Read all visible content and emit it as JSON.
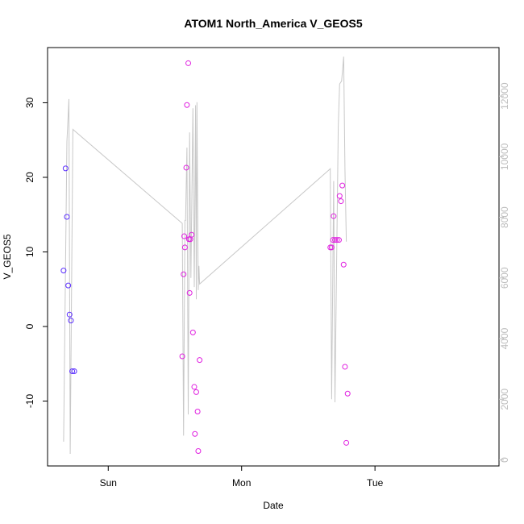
{
  "chart_data": {
    "type": "scatter",
    "title": "ATOM1 North_America V_GEOS5",
    "xlabel": "Date",
    "ylabel": "V_GEOS5",
    "x_ticks": [
      {
        "label": "Sun",
        "x": 0.0
      },
      {
        "label": "Mon",
        "x": 1.0
      },
      {
        "label": "Tue",
        "x": 2.0
      }
    ],
    "xlim": [
      -0.455,
      2.93
    ],
    "ylim": [
      -18.7,
      37.4
    ],
    "y_ticks": [
      -10,
      0,
      10,
      20,
      30
    ],
    "y2lim": [
      -200,
      13600
    ],
    "y2_ticks": [
      0,
      2000,
      4000,
      6000,
      8000,
      10000,
      12000
    ],
    "series": [
      {
        "kind": "points",
        "color": "#5a2dff",
        "points": [
          {
            "x": -0.335,
            "y": 7.5
          },
          {
            "x": -0.32,
            "y": 21.2
          },
          {
            "x": -0.31,
            "y": 14.7
          },
          {
            "x": -0.3,
            "y": 5.5
          },
          {
            "x": -0.29,
            "y": 1.6
          },
          {
            "x": -0.28,
            "y": 0.8
          },
          {
            "x": -0.27,
            "y": -6.0
          },
          {
            "x": -0.255,
            "y": -6.0
          }
        ]
      },
      {
        "kind": "points",
        "color": "#e020e0",
        "points": [
          {
            "x": 0.555,
            "y": -4.0
          },
          {
            "x": 0.565,
            "y": 7.0
          },
          {
            "x": 0.57,
            "y": 12.1
          },
          {
            "x": 0.575,
            "y": 10.6
          },
          {
            "x": 0.585,
            "y": 21.3
          },
          {
            "x": 0.59,
            "y": 29.7
          },
          {
            "x": 0.6,
            "y": 35.3
          },
          {
            "x": 0.605,
            "y": 11.7
          },
          {
            "x": 0.61,
            "y": 4.5
          },
          {
            "x": 0.615,
            "y": 11.7
          },
          {
            "x": 0.625,
            "y": 12.3
          },
          {
            "x": 0.635,
            "y": -0.8
          },
          {
            "x": 0.645,
            "y": -8.1
          },
          {
            "x": 0.65,
            "y": -14.4
          },
          {
            "x": 0.66,
            "y": -8.8
          },
          {
            "x": 0.67,
            "y": -11.4
          },
          {
            "x": 0.675,
            "y": -16.7
          },
          {
            "x": 0.685,
            "y": -4.5
          },
          {
            "x": 1.665,
            "y": 10.6
          },
          {
            "x": 1.675,
            "y": 10.6
          },
          {
            "x": 1.685,
            "y": 11.6
          },
          {
            "x": 1.69,
            "y": 14.8
          },
          {
            "x": 1.7,
            "y": 11.6
          },
          {
            "x": 1.715,
            "y": 11.6
          },
          {
            "x": 1.73,
            "y": 11.6
          },
          {
            "x": 1.735,
            "y": 17.5
          },
          {
            "x": 1.745,
            "y": 16.8
          },
          {
            "x": 1.755,
            "y": 18.9
          },
          {
            "x": 1.765,
            "y": 8.3
          },
          {
            "x": 1.775,
            "y": -5.4
          },
          {
            "x": 1.785,
            "y": -15.6
          },
          {
            "x": 1.795,
            "y": -9.0
          }
        ]
      },
      {
        "kind": "line",
        "axis": "right",
        "color": "#c8c8c8",
        "points": [
          {
            "x": -0.335,
            "y": 600
          },
          {
            "x": -0.31,
            "y": 10500
          },
          {
            "x": -0.295,
            "y": 11900
          },
          {
            "x": -0.285,
            "y": 200
          },
          {
            "x": -0.265,
            "y": 10900
          },
          {
            "x": 0.555,
            "y": 7800
          },
          {
            "x": 0.565,
            "y": 800
          },
          {
            "x": 0.575,
            "y": 7900
          },
          {
            "x": 0.58,
            "y": 7900
          },
          {
            "x": 0.59,
            "y": 10300
          },
          {
            "x": 0.6,
            "y": 1500
          },
          {
            "x": 0.61,
            "y": 10800
          },
          {
            "x": 0.62,
            "y": 6000
          },
          {
            "x": 0.635,
            "y": 11600
          },
          {
            "x": 0.645,
            "y": 5700
          },
          {
            "x": 0.655,
            "y": 11700
          },
          {
            "x": 0.66,
            "y": 5300
          },
          {
            "x": 0.665,
            "y": 11800
          },
          {
            "x": 0.675,
            "y": 5600
          },
          {
            "x": 0.68,
            "y": 6400
          },
          {
            "x": 0.685,
            "y": 5800
          },
          {
            "x": 1.665,
            "y": 9600
          },
          {
            "x": 1.675,
            "y": 2000
          },
          {
            "x": 1.69,
            "y": 9200
          },
          {
            "x": 1.7,
            "y": 1900
          },
          {
            "x": 1.725,
            "y": 11000
          },
          {
            "x": 1.735,
            "y": 12400
          },
          {
            "x": 1.75,
            "y": 12500
          },
          {
            "x": 1.765,
            "y": 13300
          },
          {
            "x": 1.775,
            "y": 9600
          },
          {
            "x": 1.785,
            "y": 7200
          }
        ]
      }
    ],
    "legend": "none",
    "grid": false
  }
}
